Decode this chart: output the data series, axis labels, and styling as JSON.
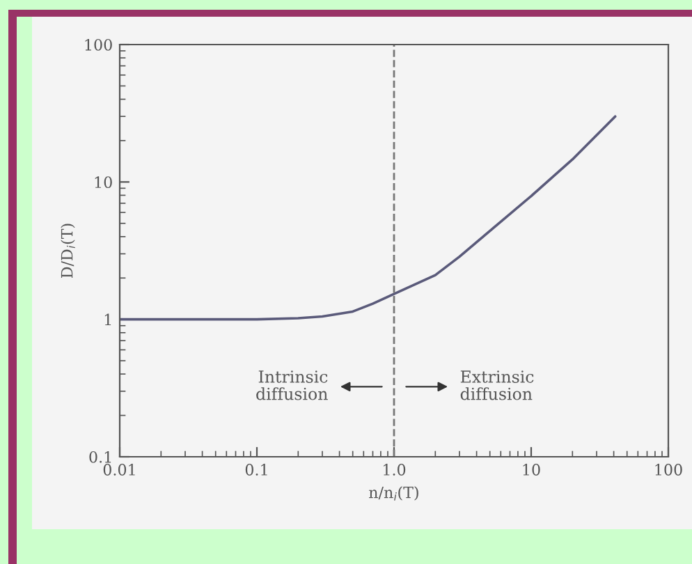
{
  "chart_data": {
    "type": "line",
    "xlabel": "n/n$_{i}$(T)",
    "ylabel": "D/D$_{i}$(T)",
    "log": "xy",
    "xlim": [
      0.01,
      100
    ],
    "ylim": [
      0.1,
      100
    ],
    "xticks": [
      0.01,
      0.1,
      {
        "value": 1,
        "label": "1.0"
      },
      10,
      100
    ],
    "yticks": [
      0.1,
      1,
      10,
      100
    ],
    "series": [
      {
        "color": "#5a5a7a",
        "x": [
          0.01,
          0.05,
          0.1,
          0.2,
          0.3,
          0.5,
          0.7,
          1,
          2,
          3,
          5,
          10,
          20,
          41
        ],
        "values": [
          1.0,
          1.0,
          1.0,
          1.02,
          1.05,
          1.14,
          1.3,
          1.53,
          2.1,
          2.86,
          4.4,
          7.9,
          14.6,
          30
        ]
      }
    ],
    "ref_lines": [
      {
        "axis": "x",
        "value": 1,
        "line_style": "dashed",
        "color": "#777777"
      }
    ],
    "annotations": [
      "Intrinsic\ndiffusion",
      "Extrinsic\ndiffusion"
    ],
    "grid": false,
    "legend": false,
    "marker": "none",
    "line_style": "solid"
  }
}
